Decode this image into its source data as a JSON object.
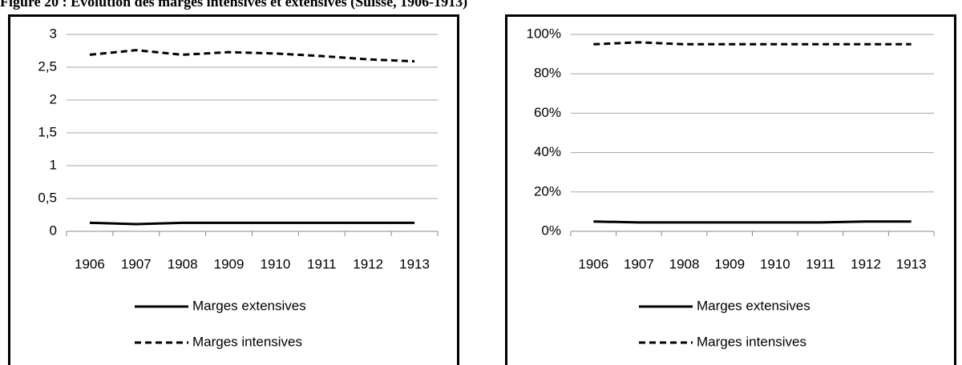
{
  "figure_title": "Figure 20 : Evolution des marges intensives et extensives (Suisse, 1906-1913)",
  "chart_data": [
    {
      "type": "line",
      "categories": [
        "1906",
        "1907",
        "1908",
        "1909",
        "1910",
        "1911",
        "1912",
        "1913"
      ],
      "series": [
        {
          "name": "Marges extensives",
          "color": "#000000",
          "dash": "solid",
          "values": [
            0.13,
            0.11,
            0.13,
            0.13,
            0.13,
            0.13,
            0.13,
            0.13
          ]
        },
        {
          "name": "Marges intensives",
          "color": "#000000",
          "dash": "dashed",
          "values": [
            2.69,
            2.76,
            2.69,
            2.73,
            2.71,
            2.67,
            2.62,
            2.59
          ]
        }
      ],
      "ylim": [
        0,
        3
      ],
      "yticks": [
        0,
        {
          "value": 0.5,
          "label": "0,5"
        },
        1,
        {
          "value": 1.5,
          "label": "1,5"
        },
        2,
        {
          "value": 2.5,
          "label": "2,5"
        },
        3
      ],
      "grid": true,
      "legend": "bottom"
    },
    {
      "type": "line",
      "categories": [
        "1906",
        "1907",
        "1908",
        "1909",
        "1910",
        "1911",
        "1912",
        "1913"
      ],
      "series": [
        {
          "name": "Marges extensives",
          "color": "#000000",
          "dash": "solid",
          "values": [
            5,
            4.5,
            4.5,
            4.5,
            4.5,
            4.5,
            5,
            5
          ]
        },
        {
          "name": "Marges intensives",
          "color": "#000000",
          "dash": "dashed",
          "values": [
            95,
            96,
            95,
            95,
            95,
            95,
            95,
            95
          ]
        }
      ],
      "ylim": [
        0,
        100
      ],
      "yticks": [
        {
          "value": 0,
          "label": "0%"
        },
        {
          "value": 20,
          "label": "20%"
        },
        {
          "value": 40,
          "label": "40%"
        },
        {
          "value": 60,
          "label": "60%"
        },
        {
          "value": 80,
          "label": "80%"
        },
        {
          "value": 100,
          "label": "100%"
        }
      ],
      "grid": true,
      "legend": "bottom"
    }
  ]
}
